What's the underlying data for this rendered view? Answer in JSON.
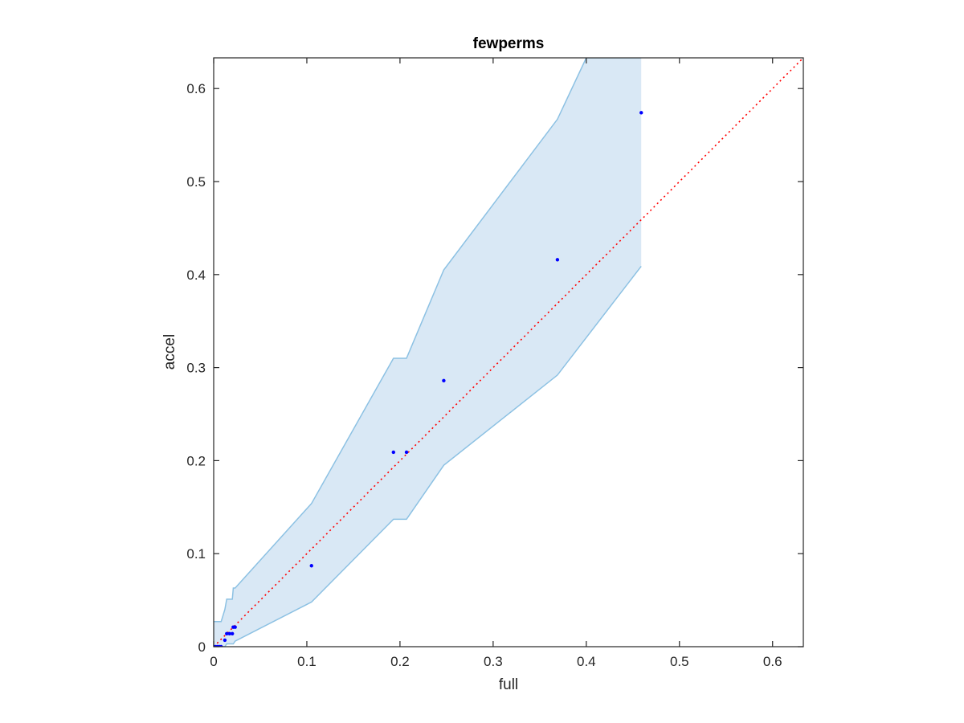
{
  "chart_data": {
    "type": "scatter",
    "title": "fewperms",
    "xlabel": "full",
    "ylabel": "accel",
    "xlim": [
      0,
      0.633
    ],
    "ylim": [
      0,
      0.633
    ],
    "xticks": [
      0,
      0.1,
      0.2,
      0.3,
      0.4,
      0.5,
      0.6
    ],
    "yticks": [
      0,
      0.1,
      0.2,
      0.3,
      0.4,
      0.5,
      0.6
    ],
    "xtick_labels": [
      "0",
      "0.1",
      "0.2",
      "0.3",
      "0.4",
      "0.5",
      "0.6"
    ],
    "ytick_labels": [
      "0",
      "0.1",
      "0.2",
      "0.3",
      "0.4",
      "0.5",
      "0.6"
    ],
    "grid": false,
    "colors": {
      "points": "#0000ff",
      "reference_line": "#ff0000",
      "band_fill": "#d9e8f5",
      "band_edge": "#8cc1e3",
      "axes": "#262626"
    },
    "points": [
      {
        "x": 0.0,
        "y": 0.0
      },
      {
        "x": 0.002,
        "y": 0.0
      },
      {
        "x": 0.004,
        "y": 0.0
      },
      {
        "x": 0.006,
        "y": 0.0
      },
      {
        "x": 0.008,
        "y": 0.0
      },
      {
        "x": 0.012,
        "y": 0.007
      },
      {
        "x": 0.014,
        "y": 0.014
      },
      {
        "x": 0.017,
        "y": 0.014
      },
      {
        "x": 0.02,
        "y": 0.014
      },
      {
        "x": 0.021,
        "y": 0.021
      },
      {
        "x": 0.023,
        "y": 0.021
      },
      {
        "x": 0.105,
        "y": 0.087
      },
      {
        "x": 0.193,
        "y": 0.209
      },
      {
        "x": 0.207,
        "y": 0.209
      },
      {
        "x": 0.247,
        "y": 0.286
      },
      {
        "x": 0.369,
        "y": 0.416
      },
      {
        "x": 0.459,
        "y": 0.574
      }
    ],
    "reference_line": {
      "style": "dotted",
      "x": [
        0,
        0.633
      ],
      "y": [
        0,
        0.633
      ]
    },
    "band": {
      "upper": [
        {
          "x": 0.0,
          "y": 0.027
        },
        {
          "x": 0.008,
          "y": 0.027
        },
        {
          "x": 0.012,
          "y": 0.04
        },
        {
          "x": 0.014,
          "y": 0.051
        },
        {
          "x": 0.02,
          "y": 0.051
        },
        {
          "x": 0.021,
          "y": 0.063
        },
        {
          "x": 0.023,
          "y": 0.063
        },
        {
          "x": 0.105,
          "y": 0.154
        },
        {
          "x": 0.193,
          "y": 0.31
        },
        {
          "x": 0.207,
          "y": 0.31
        },
        {
          "x": 0.247,
          "y": 0.405
        },
        {
          "x": 0.369,
          "y": 0.567
        },
        {
          "x": 0.4,
          "y": 0.633
        },
        {
          "x": 0.459,
          "y": 0.633
        }
      ],
      "lower": [
        {
          "x": 0.459,
          "y": 0.409
        },
        {
          "x": 0.369,
          "y": 0.292
        },
        {
          "x": 0.247,
          "y": 0.195
        },
        {
          "x": 0.207,
          "y": 0.137
        },
        {
          "x": 0.193,
          "y": 0.137
        },
        {
          "x": 0.105,
          "y": 0.048
        },
        {
          "x": 0.023,
          "y": 0.006
        },
        {
          "x": 0.021,
          "y": 0.003
        },
        {
          "x": 0.014,
          "y": 0.003
        },
        {
          "x": 0.012,
          "y": 0.0
        },
        {
          "x": 0.0,
          "y": 0.0
        }
      ]
    }
  }
}
